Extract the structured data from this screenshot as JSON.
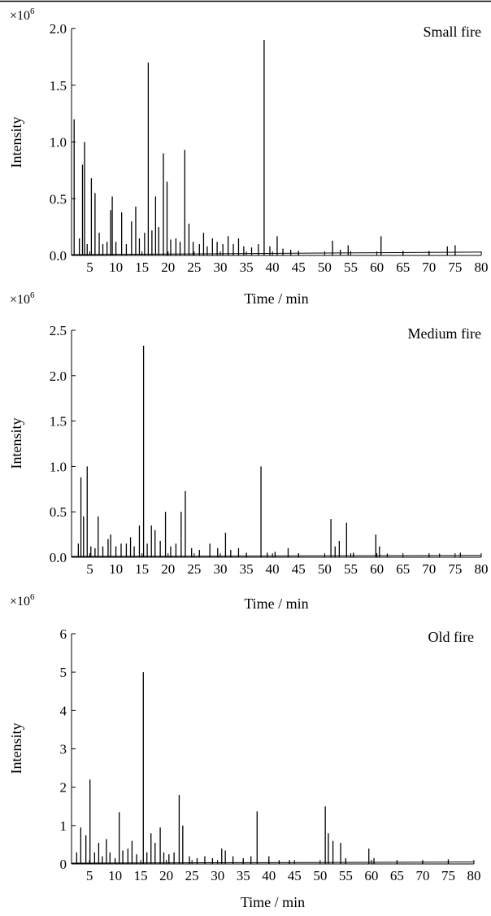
{
  "chart_data": [
    {
      "type": "line",
      "title": "Small fire",
      "xlabel": "Time / min",
      "ylabel": "Intensity",
      "scale_label": "×10",
      "scale_exp": "6",
      "xlim": [
        1.5,
        80
      ],
      "ylim": [
        0,
        2.0
      ],
      "xticks": [
        5,
        10,
        15,
        20,
        25,
        30,
        35,
        40,
        45,
        50,
        55,
        60,
        65,
        70,
        75,
        80
      ],
      "yticks": [
        "0.0",
        "0.5",
        "1.0",
        "1.5",
        "2.0"
      ],
      "baseline": 0.03,
      "peaks": [
        [
          2.0,
          1.2
        ],
        [
          3.0,
          0.15
        ],
        [
          3.6,
          0.8
        ],
        [
          4.0,
          1.0
        ],
        [
          4.5,
          0.1
        ],
        [
          5.3,
          0.68
        ],
        [
          6.0,
          0.55
        ],
        [
          6.8,
          0.2
        ],
        [
          7.5,
          0.1
        ],
        [
          8.3,
          0.12
        ],
        [
          9.0,
          0.4
        ],
        [
          9.3,
          0.52
        ],
        [
          10.0,
          0.12
        ],
        [
          11.1,
          0.38
        ],
        [
          12.0,
          0.1
        ],
        [
          13.0,
          0.3
        ],
        [
          13.8,
          0.43
        ],
        [
          14.5,
          0.15
        ],
        [
          15.5,
          0.2
        ],
        [
          16.2,
          1.7
        ],
        [
          16.9,
          0.22
        ],
        [
          17.6,
          0.52
        ],
        [
          18.2,
          0.25
        ],
        [
          19.1,
          0.9
        ],
        [
          19.8,
          0.65
        ],
        [
          20.5,
          0.14
        ],
        [
          21.5,
          0.15
        ],
        [
          22.3,
          0.12
        ],
        [
          23.2,
          0.93
        ],
        [
          24.0,
          0.28
        ],
        [
          24.8,
          0.12
        ],
        [
          26.0,
          0.1
        ],
        [
          26.8,
          0.2
        ],
        [
          27.5,
          0.08
        ],
        [
          28.5,
          0.15
        ],
        [
          29.4,
          0.12
        ],
        [
          30.5,
          0.1
        ],
        [
          31.5,
          0.17
        ],
        [
          32.5,
          0.1
        ],
        [
          33.5,
          0.15
        ],
        [
          34.5,
          0.08
        ],
        [
          36.0,
          0.07
        ],
        [
          37.3,
          0.1
        ],
        [
          38.4,
          1.9
        ],
        [
          39.5,
          0.08
        ],
        [
          40.9,
          0.17
        ],
        [
          42.0,
          0.06
        ],
        [
          43.5,
          0.05
        ],
        [
          45.0,
          0.04
        ],
        [
          51.5,
          0.13
        ],
        [
          53.0,
          0.05
        ],
        [
          54.5,
          0.09
        ],
        [
          60.8,
          0.17
        ],
        [
          65.0,
          0.04
        ],
        [
          70.0,
          0.04
        ],
        [
          73.5,
          0.08
        ],
        [
          75.0,
          0.09
        ]
      ]
    },
    {
      "type": "line",
      "title": "Medium fire",
      "xlabel": "Time / min",
      "ylabel": "Intensity",
      "scale_label": "×10",
      "scale_exp": "6",
      "xlim": [
        1.5,
        80
      ],
      "ylim": [
        0,
        2.5
      ],
      "xticks": [
        5,
        10,
        15,
        20,
        25,
        30,
        35,
        40,
        45,
        50,
        55,
        60,
        65,
        70,
        75,
        80
      ],
      "yticks": [
        "0.0",
        "0.5",
        "1.0",
        "1.5",
        "2.0",
        "2.5"
      ],
      "baseline": 0.02,
      "peaks": [
        [
          2.8,
          0.15
        ],
        [
          3.3,
          0.88
        ],
        [
          3.8,
          0.45
        ],
        [
          4.5,
          1.0
        ],
        [
          5.2,
          0.12
        ],
        [
          6.0,
          0.1
        ],
        [
          6.6,
          0.45
        ],
        [
          7.5,
          0.12
        ],
        [
          8.5,
          0.2
        ],
        [
          9.0,
          0.25
        ],
        [
          10.0,
          0.12
        ],
        [
          11.0,
          0.15
        ],
        [
          12.0,
          0.15
        ],
        [
          12.8,
          0.22
        ],
        [
          13.5,
          0.12
        ],
        [
          14.5,
          0.35
        ],
        [
          15.3,
          2.33
        ],
        [
          16.0,
          0.15
        ],
        [
          16.8,
          0.35
        ],
        [
          17.5,
          0.3
        ],
        [
          18.5,
          0.18
        ],
        [
          19.5,
          0.5
        ],
        [
          20.5,
          0.12
        ],
        [
          21.5,
          0.15
        ],
        [
          22.5,
          0.5
        ],
        [
          23.3,
          0.73
        ],
        [
          24.5,
          0.1
        ],
        [
          26.0,
          0.08
        ],
        [
          28.0,
          0.15
        ],
        [
          29.5,
          0.1
        ],
        [
          31.0,
          0.27
        ],
        [
          32.0,
          0.08
        ],
        [
          33.5,
          0.1
        ],
        [
          35.0,
          0.05
        ],
        [
          37.8,
          1.0
        ],
        [
          39.0,
          0.05
        ],
        [
          40.5,
          0.06
        ],
        [
          43.0,
          0.1
        ],
        [
          45.0,
          0.04
        ],
        [
          51.2,
          0.42
        ],
        [
          52.0,
          0.12
        ],
        [
          52.8,
          0.18
        ],
        [
          54.2,
          0.38
        ],
        [
          55.5,
          0.05
        ],
        [
          59.8,
          0.25
        ],
        [
          60.5,
          0.12
        ],
        [
          62.0,
          0.04
        ],
        [
          70.0,
          0.03
        ],
        [
          72.0,
          0.04
        ],
        [
          76.0,
          0.05
        ]
      ]
    },
    {
      "type": "line",
      "title": "Old fire",
      "xlabel": "Time / min",
      "ylabel": "Intensity",
      "scale_label": "×10",
      "scale_exp": "6",
      "xlim": [
        1.5,
        80
      ],
      "ylim": [
        0,
        6
      ],
      "xticks": [
        5,
        10,
        15,
        20,
        25,
        30,
        35,
        40,
        45,
        50,
        55,
        60,
        65,
        70,
        75,
        80
      ],
      "yticks": [
        "0",
        "1",
        "2",
        "3",
        "4",
        "5",
        "6"
      ],
      "baseline": 0.05,
      "peaks": [
        [
          2.5,
          0.3
        ],
        [
          3.3,
          0.95
        ],
        [
          4.3,
          0.75
        ],
        [
          5.1,
          2.2
        ],
        [
          6.0,
          0.3
        ],
        [
          6.8,
          0.55
        ],
        [
          7.5,
          0.2
        ],
        [
          8.3,
          0.65
        ],
        [
          9.0,
          0.3
        ],
        [
          10.0,
          0.15
        ],
        [
          10.8,
          1.35
        ],
        [
          11.5,
          0.35
        ],
        [
          12.5,
          0.4
        ],
        [
          13.3,
          0.6
        ],
        [
          14.2,
          0.25
        ],
        [
          15.5,
          5.0
        ],
        [
          16.2,
          0.3
        ],
        [
          17.0,
          0.8
        ],
        [
          17.8,
          0.55
        ],
        [
          18.8,
          0.95
        ],
        [
          19.5,
          0.3
        ],
        [
          20.5,
          0.25
        ],
        [
          21.5,
          0.3
        ],
        [
          22.5,
          1.8
        ],
        [
          23.2,
          1.0
        ],
        [
          24.5,
          0.2
        ],
        [
          26.0,
          0.15
        ],
        [
          27.5,
          0.2
        ],
        [
          29.0,
          0.15
        ],
        [
          30.8,
          0.4
        ],
        [
          31.5,
          0.35
        ],
        [
          33.0,
          0.2
        ],
        [
          35.0,
          0.15
        ],
        [
          36.5,
          0.2
        ],
        [
          37.7,
          1.37
        ],
        [
          40.0,
          0.2
        ],
        [
          42.0,
          0.1
        ],
        [
          44.0,
          0.1
        ],
        [
          51.0,
          1.5
        ],
        [
          51.6,
          0.8
        ],
        [
          52.5,
          0.6
        ],
        [
          54.0,
          0.55
        ],
        [
          55.0,
          0.15
        ],
        [
          59.5,
          0.4
        ],
        [
          60.5,
          0.15
        ],
        [
          65.0,
          0.08
        ],
        [
          70.0,
          0.08
        ],
        [
          75.0,
          0.12
        ]
      ]
    }
  ]
}
